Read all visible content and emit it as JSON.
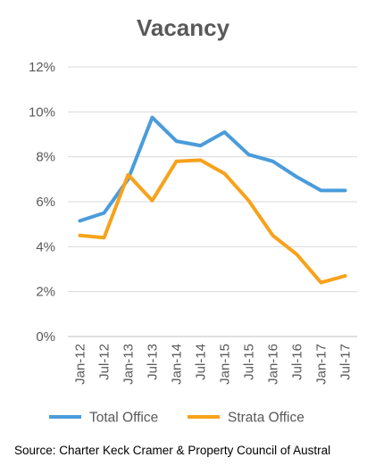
{
  "source_note": "Source: Charter Keck Cramer & Property Council of Austral",
  "chart_data": {
    "type": "line",
    "title": "Vacancy",
    "xlabel": "",
    "ylabel": "",
    "categories": [
      "Jan-12",
      "Jul-12",
      "Jan-13",
      "Jul-13",
      "Jan-14",
      "Jul-14",
      "Jan-15",
      "Jul-15",
      "Jan-16",
      "Jul-16",
      "Jan-17",
      "Jul-17"
    ],
    "y_ticks": [
      "0%",
      "2%",
      "4%",
      "6%",
      "8%",
      "10%",
      "12%"
    ],
    "ylim": [
      0,
      12
    ],
    "grid": true,
    "legend_position": "bottom",
    "series": [
      {
        "name": "Total Office",
        "color": "#4a9cdb",
        "values": [
          5.15,
          5.5,
          7.0,
          9.75,
          8.7,
          8.5,
          9.1,
          8.1,
          7.8,
          7.1,
          6.5,
          6.5
        ]
      },
      {
        "name": "Strata Office",
        "color": "#f7a21b",
        "values": [
          4.5,
          4.4,
          7.2,
          6.05,
          7.8,
          7.85,
          7.25,
          6.05,
          4.5,
          3.65,
          2.4,
          2.7
        ]
      }
    ]
  }
}
